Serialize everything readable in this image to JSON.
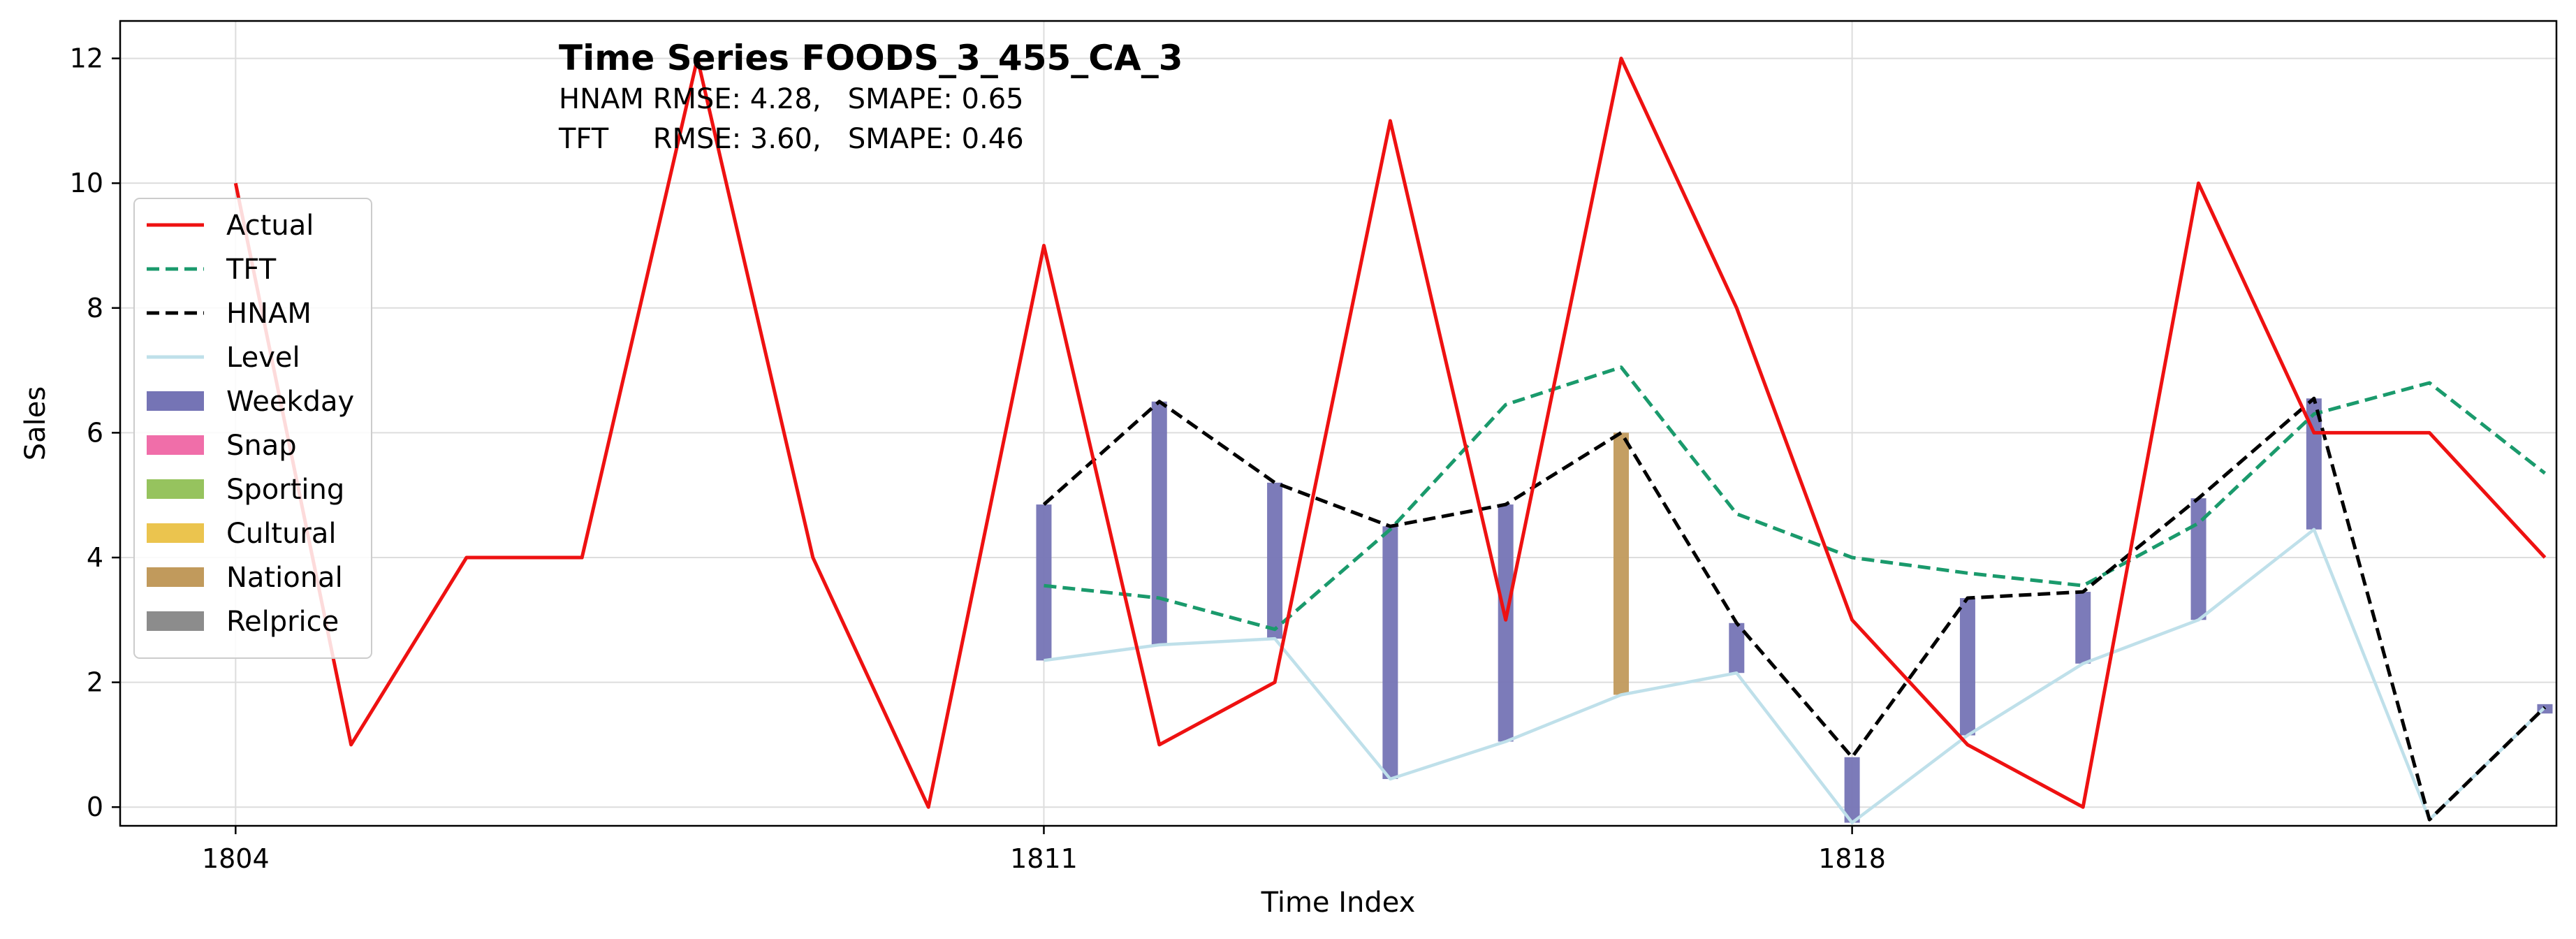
{
  "chart_data": {
    "type": "line",
    "title": "Time Series FOODS_3_455_CA_3",
    "subtitle_lines": [
      "HNAM RMSE: 4.28,   SMAPE: 0.65",
      "TFT     RMSE: 3.60,   SMAPE: 0.46"
    ],
    "xlabel": "Time Index",
    "ylabel": "Sales",
    "xlim": [
      1803,
      1824.1
    ],
    "ylim": [
      -0.3,
      12.6
    ],
    "xticks": [
      1804,
      1811,
      1818
    ],
    "yticks": [
      0,
      2,
      4,
      6,
      8,
      10,
      12
    ],
    "grid": true,
    "legend_position": "center-left",
    "legend": [
      {
        "label": "Actual",
        "kind": "line",
        "color": "#ee1111",
        "dash": "solid"
      },
      {
        "label": "TFT",
        "kind": "line",
        "color": "#1a9a6c",
        "dash": "dashed"
      },
      {
        "label": "HNAM",
        "kind": "line",
        "color": "#000000",
        "dash": "dashed"
      },
      {
        "label": "Level",
        "kind": "line",
        "color": "#bfe0ea",
        "dash": "solid"
      },
      {
        "label": "Weekday",
        "kind": "patch",
        "color": "#7574b5"
      },
      {
        "label": "Snap",
        "kind": "patch",
        "color": "#f06ea9"
      },
      {
        "label": "Sporting",
        "kind": "patch",
        "color": "#96c35e"
      },
      {
        "label": "Cultural",
        "kind": "patch",
        "color": "#ebc44e"
      },
      {
        "label": "National",
        "kind": "patch",
        "color": "#c19a5c"
      },
      {
        "label": "Relprice",
        "kind": "patch",
        "color": "#8c8c8c"
      }
    ],
    "series": [
      {
        "name": "Actual",
        "color": "#ee1111",
        "dash": "solid",
        "x": [
          1804,
          1805,
          1806,
          1807,
          1808,
          1809,
          1810,
          1811,
          1812,
          1813,
          1814,
          1815,
          1816,
          1817,
          1818,
          1819,
          1820,
          1821,
          1822,
          1823,
          1824
        ],
        "values": [
          10,
          1,
          4,
          4,
          12,
          4,
          0,
          9,
          1,
          2,
          11,
          3,
          12,
          8,
          3,
          1,
          0,
          10,
          6,
          6,
          4
        ]
      },
      {
        "name": "TFT",
        "color": "#1a9a6c",
        "dash": "dashed",
        "x": [
          1811,
          1812,
          1813,
          1814,
          1815,
          1816,
          1817,
          1818,
          1819,
          1820,
          1821,
          1822,
          1823,
          1824
        ],
        "values": [
          3.55,
          3.35,
          2.85,
          4.45,
          6.45,
          7.05,
          4.7,
          4.0,
          3.75,
          3.55,
          4.55,
          6.3,
          6.8,
          5.35
        ]
      },
      {
        "name": "HNAM",
        "color": "#000000",
        "dash": "dashed",
        "x": [
          1811,
          1812,
          1813,
          1814,
          1815,
          1816,
          1817,
          1818,
          1819,
          1820,
          1821,
          1822,
          1823,
          1824
        ],
        "values": [
          4.85,
          6.5,
          5.2,
          4.5,
          4.85,
          6.0,
          2.95,
          0.8,
          3.35,
          3.45,
          4.95,
          6.55,
          -0.2,
          1.6
        ]
      },
      {
        "name": "Level",
        "color": "#bfe0ea",
        "dash": "solid",
        "x": [
          1811,
          1812,
          1813,
          1814,
          1815,
          1816,
          1817,
          1818,
          1819,
          1820,
          1821,
          1822,
          1823,
          1824
        ],
        "values": [
          2.35,
          2.6,
          2.7,
          0.45,
          1.05,
          1.8,
          2.15,
          -0.25,
          1.15,
          2.3,
          3.0,
          4.45,
          -0.2,
          1.6
        ]
      }
    ],
    "component_bars": [
      {
        "x": 1811,
        "component": "Weekday",
        "from": 2.35,
        "to": 4.85
      },
      {
        "x": 1812,
        "component": "Weekday",
        "from": 2.6,
        "to": 6.5
      },
      {
        "x": 1813,
        "component": "Weekday",
        "from": 2.7,
        "to": 5.2
      },
      {
        "x": 1814,
        "component": "Weekday",
        "from": 0.45,
        "to": 4.5
      },
      {
        "x": 1815,
        "component": "Weekday",
        "from": 1.05,
        "to": 4.85
      },
      {
        "x": 1816,
        "component": "National",
        "from": 1.8,
        "to": 6.0
      },
      {
        "x": 1817,
        "component": "Weekday",
        "from": 2.15,
        "to": 2.95
      },
      {
        "x": 1818,
        "component": "Weekday",
        "from": -0.25,
        "to": 0.8
      },
      {
        "x": 1819,
        "component": "Weekday",
        "from": 1.15,
        "to": 3.35
      },
      {
        "x": 1820,
        "component": "Weekday",
        "from": 2.3,
        "to": 3.45
      },
      {
        "x": 1821,
        "component": "Weekday",
        "from": 3.0,
        "to": 4.95
      },
      {
        "x": 1822,
        "component": "Weekday",
        "from": 4.45,
        "to": 6.55
      },
      {
        "x": 1824,
        "component": "Weekday",
        "from": 1.5,
        "to": 1.65
      }
    ]
  }
}
